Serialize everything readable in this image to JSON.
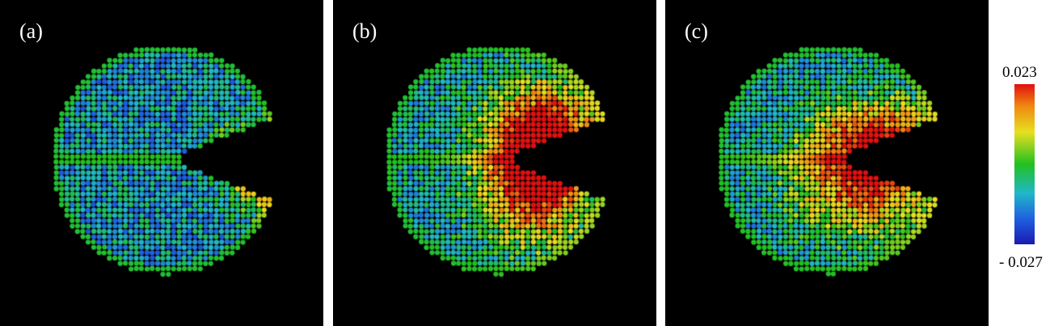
{
  "panels": [
    {
      "label": "(a)"
    },
    {
      "label": "(b)"
    },
    {
      "label": "(c)"
    }
  ],
  "colorbar": {
    "max": "0.023",
    "min": "- 0.027",
    "colors": [
      "#e01010",
      "#f08a10",
      "#e8e020",
      "#22c020",
      "#20b8c8",
      "#2060e0",
      "#1a1ab0"
    ]
  }
}
